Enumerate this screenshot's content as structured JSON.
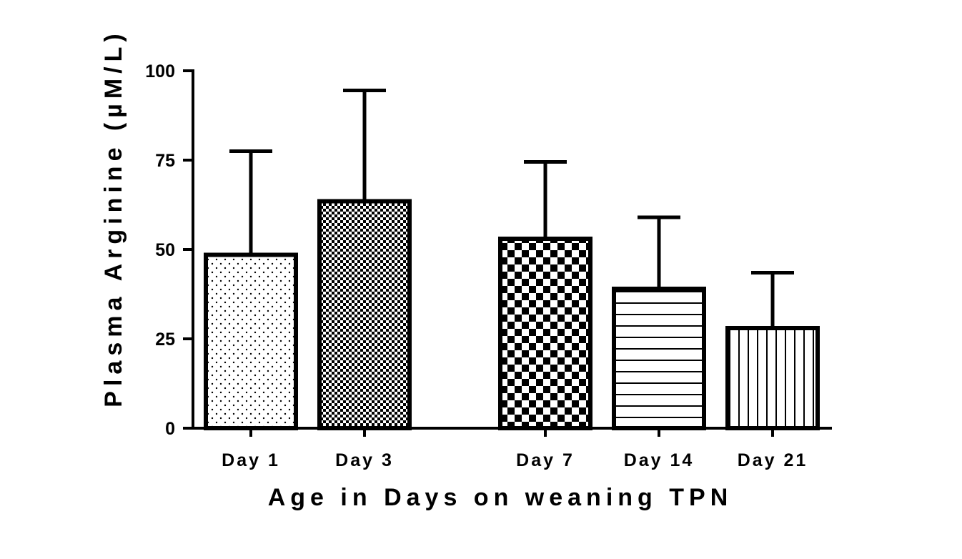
{
  "chart_data": {
    "type": "bar",
    "categories": [
      "Day 1",
      "Day 3",
      "Day 7",
      "Day 14",
      "Day 21"
    ],
    "values": [
      48.5,
      63.5,
      53,
      39,
      28
    ],
    "error_upper": [
      77.5,
      94.5,
      74.5,
      59,
      43.5
    ],
    "patterns": [
      "dots",
      "fine-check",
      "checker",
      "horizontal-lines",
      "vertical-lines"
    ],
    "xlabel": "Age in Days on weaning TPN",
    "ylabel": "Plasma Arginine (µM/L)",
    "ylim": [
      0,
      100
    ],
    "yticks": [
      0,
      25,
      50,
      75,
      100
    ],
    "grid": false,
    "legend": "none",
    "colors": {
      "stroke": "#000000",
      "fill": "#ffffff"
    }
  }
}
